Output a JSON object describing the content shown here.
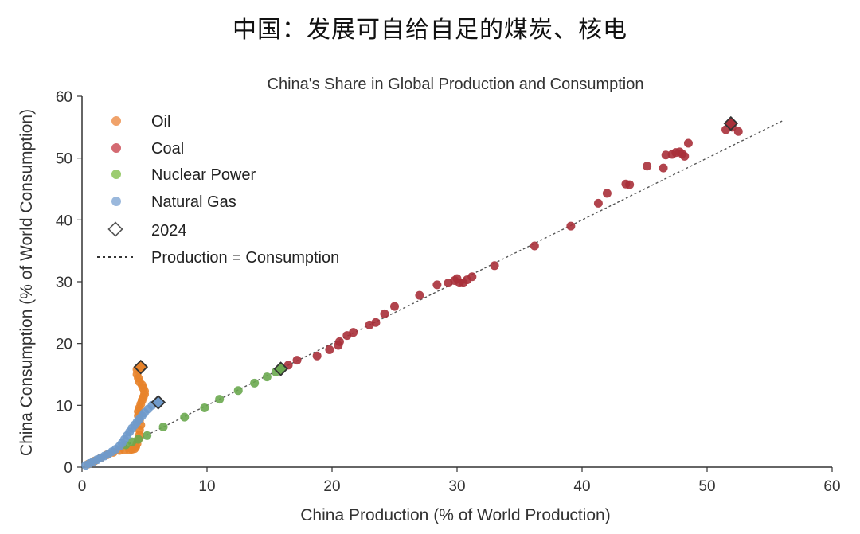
{
  "page_title": "中国：发展可自给自足的煤炭、核电",
  "chart_data": {
    "type": "scatter",
    "title": "China's Share in Global Production and Consumption",
    "xlabel": "China Production (% of World Production)",
    "ylabel": "China Consumption (% of World Consumption)",
    "xlim": [
      0,
      60
    ],
    "ylim": [
      0,
      60
    ],
    "xticks": [
      "0",
      "10",
      "20",
      "30",
      "40",
      "50",
      "60"
    ],
    "yticks": [
      "0",
      "10",
      "20",
      "30",
      "40",
      "50",
      "60"
    ],
    "grid": false,
    "legend_position": "top-left",
    "legend": {
      "series": [
        "Oil",
        "Coal",
        "Nuclear Power",
        "Natural Gas"
      ],
      "marker_2024": "2024",
      "reference_line": "Production = Consumption"
    },
    "reference_line": {
      "x": [
        0,
        56
      ],
      "y": [
        0,
        56
      ]
    },
    "colors": {
      "Oil": "#e8832a",
      "Coal": "#a8303a",
      "Nuclear Power": "#6aa84f",
      "Natural Gas": "#6f9acb"
    },
    "legend_colors": {
      "Oil": "#f0a26a",
      "Coal": "#d46a72",
      "Nuclear Power": "#9ccc70",
      "Natural Gas": "#9ab8dc"
    },
    "series": [
      {
        "name": "Oil",
        "x": [
          0.5,
          1.0,
          1.5,
          2.0,
          2.5,
          3.0,
          3.4,
          3.8,
          4.0,
          4.2,
          4.3,
          4.4,
          4.5,
          4.6,
          4.6,
          4.7,
          4.6,
          4.5,
          4.5,
          4.6,
          4.7,
          4.8,
          4.9,
          5.0,
          5.0,
          4.9,
          4.8,
          4.6,
          4.5,
          4.4,
          4.4
        ],
        "y": [
          0.5,
          1.0,
          1.5,
          2.0,
          2.4,
          2.7,
          2.8,
          2.8,
          2.9,
          3.0,
          3.3,
          3.8,
          4.5,
          5.2,
          6.0,
          6.8,
          7.6,
          8.3,
          9.0,
          9.6,
          10.2,
          10.8,
          11.3,
          11.8,
          12.3,
          12.8,
          13.3,
          13.8,
          14.4,
          15.0,
          15.8
        ]
      },
      {
        "name": "Coal",
        "x": [
          16.5,
          17.2,
          18.8,
          19.8,
          20.5,
          20.6,
          21.2,
          21.7,
          23.0,
          23.5,
          24.2,
          25.0,
          27.0,
          28.4,
          29.3,
          29.8,
          30.0,
          30.2,
          30.5,
          30.8,
          31.2,
          33.0,
          36.2,
          39.1,
          41.3,
          42.0,
          43.5,
          43.8,
          45.2,
          46.5,
          46.7,
          47.2,
          47.5,
          47.8,
          48.0,
          48.2,
          48.5,
          51.5,
          52.0,
          52.5
        ],
        "y": [
          16.5,
          17.3,
          18.0,
          19.0,
          19.7,
          20.3,
          21.3,
          21.8,
          23.0,
          23.4,
          24.8,
          26.0,
          27.8,
          29.5,
          29.8,
          30.2,
          30.5,
          29.8,
          29.8,
          30.3,
          30.8,
          32.6,
          35.8,
          39.0,
          42.7,
          44.3,
          45.8,
          45.7,
          48.7,
          48.4,
          50.5,
          50.6,
          50.9,
          51.0,
          50.7,
          50.3,
          52.4,
          54.6,
          55.0,
          54.3
        ]
      },
      {
        "name": "Nuclear Power",
        "x": [
          3.5,
          4.0,
          4.5,
          5.2,
          6.5,
          8.2,
          9.8,
          11.0,
          12.5,
          13.8,
          14.8,
          15.5
        ],
        "y": [
          3.6,
          4.1,
          4.5,
          5.1,
          6.5,
          8.1,
          9.6,
          11.0,
          12.4,
          13.6,
          14.6,
          15.4
        ]
      },
      {
        "name": "Natural Gas",
        "x": [
          0.3,
          0.6,
          0.9,
          1.2,
          1.5,
          1.8,
          2.1,
          2.4,
          2.7,
          3.0,
          3.2,
          3.4,
          3.6,
          3.8,
          4.0,
          4.2,
          4.4,
          4.6,
          4.8,
          5.0,
          5.3,
          5.6
        ],
        "y": [
          0.3,
          0.6,
          0.9,
          1.2,
          1.5,
          1.8,
          2.1,
          2.5,
          2.9,
          3.4,
          3.9,
          4.5,
          5.1,
          5.7,
          6.3,
          6.8,
          7.3,
          7.8,
          8.3,
          8.8,
          9.4,
          10.0
        ]
      }
    ],
    "markers_2024": [
      {
        "series": "Oil",
        "x": 4.7,
        "y": 16.2
      },
      {
        "series": "Coal",
        "x": 51.9,
        "y": 55.6
      },
      {
        "series": "Nuclear Power",
        "x": 15.9,
        "y": 15.9
      },
      {
        "series": "Natural Gas",
        "x": 6.1,
        "y": 10.5
      }
    ]
  }
}
